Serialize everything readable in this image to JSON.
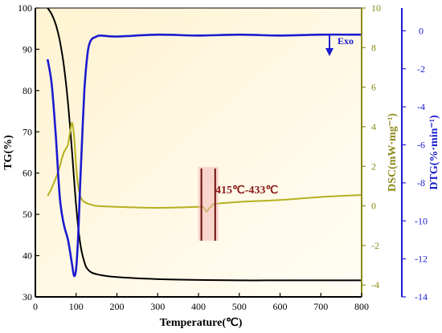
{
  "chart_data": {
    "type": "line",
    "title": "",
    "xlabel": "Temperature(℃)",
    "xlim": [
      0,
      800
    ],
    "x_ticks": [
      0,
      100,
      200,
      300,
      400,
      500,
      600,
      700,
      800
    ],
    "grid": false,
    "axes": {
      "tg": {
        "label": "TG(%)",
        "ylim": [
          30,
          100
        ],
        "ticks": [
          30,
          40,
          50,
          60,
          70,
          80,
          90,
          100
        ],
        "color": "#000000"
      },
      "dsc": {
        "label": "DSC(mW·mg⁻¹)",
        "ylim": [
          -4.6,
          10
        ],
        "ticks": [
          -4,
          -2,
          0,
          2,
          4,
          6,
          8,
          10
        ],
        "color": "#8c8a1c"
      },
      "dtg": {
        "label": "DTG(%·min⁻¹)",
        "ylim": [
          -14,
          1.2
        ],
        "ticks": [
          0,
          -2,
          -4,
          -6,
          -8,
          -10,
          -12,
          -14
        ],
        "color": "#1b1bd0"
      }
    },
    "series": [
      {
        "axis": "tg",
        "color": "#000000",
        "x": [
          30,
          40,
          50,
          60,
          70,
          80,
          90,
          100,
          110,
          120,
          130,
          150,
          200,
          300,
          400,
          500,
          600,
          700,
          800
        ],
        "y": [
          100,
          98.5,
          96,
          92,
          86,
          77,
          65,
          52,
          43,
          38.5,
          36.5,
          35.5,
          34.8,
          34.3,
          34.1,
          34.0,
          34.0,
          34.0,
          34.0
        ]
      },
      {
        "axis": "dsc",
        "color": "#b5b01e",
        "x": [
          30,
          40,
          50,
          60,
          65,
          70,
          75,
          80,
          85,
          90,
          95,
          100,
          105,
          110,
          115,
          120,
          130,
          140,
          150,
          200,
          300,
          400,
          410,
          415,
          420,
          425,
          433,
          440,
          500,
          600,
          700,
          800
        ],
        "y": [
          0.5,
          0.9,
          1.4,
          2.0,
          2.4,
          2.7,
          2.9,
          3.1,
          3.7,
          4.2,
          3.5,
          2.0,
          1.0,
          0.5,
          0.3,
          0.2,
          0.1,
          0.05,
          0.0,
          -0.05,
          -0.1,
          -0.05,
          -0.05,
          -0.15,
          -0.3,
          -0.15,
          0.0,
          0.1,
          0.2,
          0.3,
          0.45,
          0.55
        ]
      },
      {
        "axis": "dtg",
        "color": "#1b1bd0",
        "x": [
          30,
          40,
          50,
          60,
          70,
          80,
          90,
          95,
          100,
          105,
          110,
          115,
          120,
          125,
          130,
          135,
          140,
          145,
          150,
          160,
          200,
          300,
          400,
          500,
          600,
          700,
          800
        ],
        "y": [
          -1.5,
          -2.8,
          -5.5,
          -8.8,
          -10.2,
          -11.0,
          -12.3,
          -12.9,
          -12.5,
          -10.8,
          -8.0,
          -5.5,
          -3.2,
          -1.8,
          -0.9,
          -0.55,
          -0.4,
          -0.35,
          -0.3,
          -0.25,
          -0.3,
          -0.2,
          -0.25,
          -0.2,
          -0.25,
          -0.2,
          -0.2
        ]
      }
    ],
    "annotations": {
      "range_label": "415℃-433℃",
      "range_x": [
        415,
        433
      ],
      "exo_label": "Exo"
    }
  }
}
